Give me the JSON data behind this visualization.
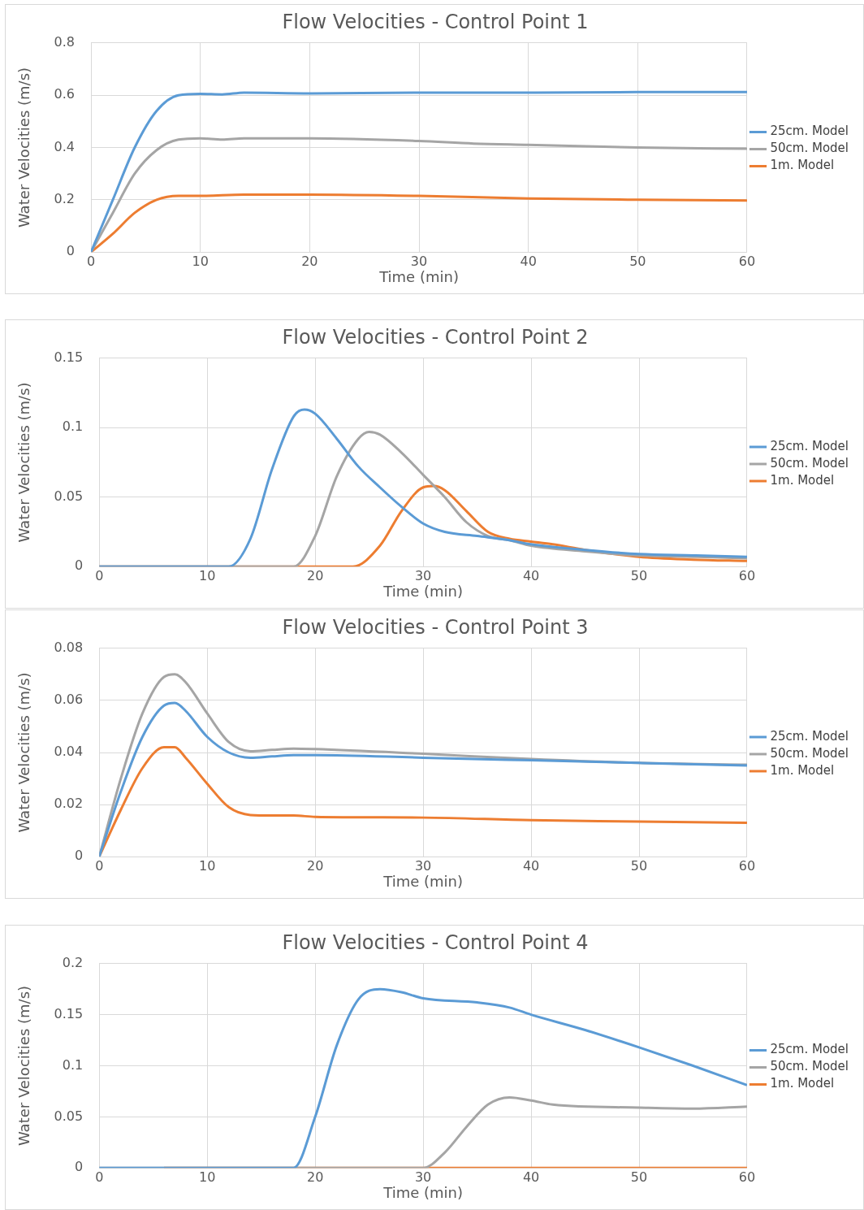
{
  "chart_data": [
    {
      "type": "line",
      "title": "Flow Velocities - Control Point 1",
      "xlabel": "Time (min)",
      "ylabel": "Water Velocities (m/s)",
      "xlim": [
        0,
        60
      ],
      "xticks": [
        0,
        10,
        20,
        30,
        40,
        50,
        60
      ],
      "ylim": [
        0,
        0.8
      ],
      "yticks": [
        0,
        0.2,
        0.4,
        0.6,
        0.8
      ],
      "grid": true,
      "legend": "right",
      "series": [
        {
          "name": "25cm. Model",
          "color": "#5b9bd5",
          "x": [
            0,
            2,
            4,
            6,
            8,
            10,
            12,
            14,
            20,
            30,
            40,
            50,
            60
          ],
          "values": [
            0,
            0.2,
            0.4,
            0.54,
            0.6,
            0.605,
            0.603,
            0.61,
            0.607,
            0.61,
            0.61,
            0.612,
            0.612
          ]
        },
        {
          "name": "50cm. Model",
          "color": "#a5a5a5",
          "x": [
            0,
            2,
            4,
            6,
            8,
            10,
            12,
            14,
            20,
            30,
            35,
            40,
            50,
            60
          ],
          "values": [
            0,
            0.15,
            0.3,
            0.39,
            0.43,
            0.435,
            0.43,
            0.435,
            0.435,
            0.425,
            0.415,
            0.41,
            0.4,
            0.395
          ]
        },
        {
          "name": "1m. Model",
          "color": "#ed7d31",
          "x": [
            0,
            2,
            4,
            6,
            8,
            10,
            14,
            20,
            30,
            40,
            50,
            60
          ],
          "values": [
            0,
            0.07,
            0.15,
            0.2,
            0.215,
            0.215,
            0.22,
            0.22,
            0.215,
            0.205,
            0.2,
            0.197
          ]
        }
      ]
    },
    {
      "type": "line",
      "title": "Flow Velocities - Control Point 2",
      "xlabel": "Time (min)",
      "ylabel": "Water Velocities (m/s)",
      "xlim": [
        0,
        60
      ],
      "xticks": [
        0,
        10,
        20,
        30,
        40,
        50,
        60
      ],
      "ylim": [
        0,
        0.15
      ],
      "yticks": [
        0,
        0.05,
        0.1,
        0.15
      ],
      "grid": true,
      "legend": "right",
      "series": [
        {
          "name": "25cm. Model",
          "color": "#5b9bd5",
          "x": [
            0,
            12,
            14,
            16,
            18,
            19,
            20,
            22,
            24,
            26,
            28,
            30,
            32,
            35,
            38,
            40,
            45,
            50,
            55,
            60
          ],
          "values": [
            0,
            0,
            0.02,
            0.07,
            0.108,
            0.113,
            0.11,
            0.092,
            0.072,
            0.057,
            0.043,
            0.031,
            0.025,
            0.022,
            0.019,
            0.016,
            0.012,
            0.009,
            0.008,
            0.007
          ]
        },
        {
          "name": "50cm. Model",
          "color": "#a5a5a5",
          "x": [
            0,
            18,
            20,
            22,
            24,
            25,
            26,
            28,
            30,
            32,
            34,
            36,
            38,
            40,
            45,
            50,
            55,
            60
          ],
          "values": [
            0,
            0,
            0.022,
            0.065,
            0.092,
            0.097,
            0.095,
            0.082,
            0.066,
            0.05,
            0.032,
            0.022,
            0.019,
            0.015,
            0.011,
            0.008,
            0.007,
            0.006
          ]
        },
        {
          "name": "1m. Model",
          "color": "#ed7d31",
          "x": [
            0,
            23.5,
            26,
            28,
            30,
            31,
            32,
            34,
            36,
            38,
            40,
            42,
            45,
            50,
            55,
            60
          ],
          "values": [
            0,
            0,
            0.015,
            0.04,
            0.057,
            0.058,
            0.055,
            0.04,
            0.025,
            0.02,
            0.018,
            0.016,
            0.012,
            0.007,
            0.005,
            0.004
          ]
        }
      ]
    },
    {
      "type": "line",
      "title": "Flow Velocities - Control Point 3",
      "xlabel": "Time (min)",
      "ylabel": "Water Velocities (m/s)",
      "xlim": [
        0,
        60
      ],
      "xticks": [
        0,
        10,
        20,
        30,
        40,
        50,
        60
      ],
      "ylim": [
        0,
        0.08
      ],
      "yticks": [
        0,
        0.02,
        0.04,
        0.06,
        0.08
      ],
      "grid": true,
      "legend": "right",
      "series": [
        {
          "name": "25cm. Model",
          "color": "#5b9bd5",
          "x": [
            0,
            2,
            4,
            6,
            7,
            8,
            10,
            12,
            14,
            16,
            18,
            20,
            30,
            40,
            50,
            60
          ],
          "values": [
            0,
            0.025,
            0.046,
            0.058,
            0.059,
            0.056,
            0.046,
            0.04,
            0.038,
            0.0385,
            0.039,
            0.039,
            0.038,
            0.037,
            0.036,
            0.035
          ]
        },
        {
          "name": "50cm. Model",
          "color": "#a5a5a5",
          "x": [
            0,
            2,
            4,
            6,
            7,
            8,
            10,
            12,
            14,
            16,
            18,
            20,
            30,
            40,
            50,
            60
          ],
          "values": [
            0,
            0.03,
            0.055,
            0.069,
            0.07,
            0.067,
            0.055,
            0.044,
            0.0405,
            0.041,
            0.0415,
            0.0413,
            0.0395,
            0.0375,
            0.036,
            0.0353
          ]
        },
        {
          "name": "1m. Model",
          "color": "#ed7d31",
          "x": [
            0,
            2,
            4,
            6,
            7,
            8,
            10,
            12,
            14,
            16,
            18,
            20,
            30,
            40,
            50,
            60
          ],
          "values": [
            0,
            0.018,
            0.034,
            0.042,
            0.042,
            0.038,
            0.028,
            0.019,
            0.016,
            0.0158,
            0.0158,
            0.0153,
            0.015,
            0.014,
            0.0135,
            0.013
          ]
        }
      ]
    },
    {
      "type": "line",
      "title": "Flow Velocities - Control Point 4",
      "xlabel": "Time (min)",
      "ylabel": "Water Velocities (m/s)",
      "xlim": [
        0,
        60
      ],
      "xticks": [
        0,
        10,
        20,
        30,
        40,
        50,
        60
      ],
      "ylim": [
        0,
        0.2
      ],
      "yticks": [
        0,
        0.05,
        0.1,
        0.15,
        0.2
      ],
      "grid": true,
      "legend": "right",
      "series": [
        {
          "name": "25cm. Model",
          "color": "#5b9bd5",
          "x": [
            0,
            18,
            20,
            22,
            24,
            26,
            28,
            30,
            35,
            38,
            40,
            45,
            50,
            55,
            60
          ],
          "values": [
            0,
            0,
            0.05,
            0.12,
            0.165,
            0.175,
            0.172,
            0.166,
            0.162,
            0.157,
            0.15,
            0.135,
            0.118,
            0.1,
            0.081
          ]
        },
        {
          "name": "50cm. Model",
          "color": "#a5a5a5",
          "x": [
            0,
            30,
            32,
            34,
            36,
            38,
            40,
            42,
            50,
            55,
            60
          ],
          "values": [
            0,
            0,
            0.015,
            0.04,
            0.062,
            0.069,
            0.066,
            0.062,
            0.059,
            0.058,
            0.06
          ]
        },
        {
          "name": "1m. Model",
          "color": "#ed7d31",
          "x": [
            6,
            60
          ],
          "values": [
            0,
            0
          ]
        }
      ]
    }
  ]
}
